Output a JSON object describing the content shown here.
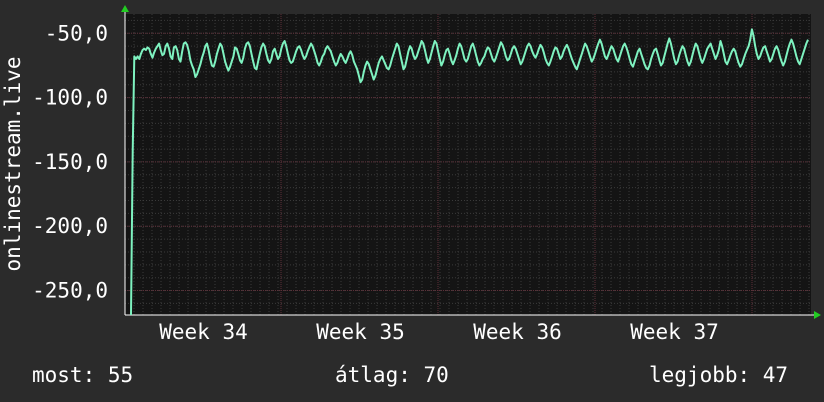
{
  "colors": {
    "background": "#2b2b2b",
    "plot_area": "#141414",
    "grid_minor": "#3a3a3a",
    "grid_major": "#5e2e38",
    "axis": "#ffffff",
    "arrow": "#22cc22",
    "series": "#7ef2c0",
    "text": "#ffffff"
  },
  "stats": {
    "current": "most: 55",
    "average": "átlag: 70",
    "best": "legjobb: 47"
  },
  "chart_data": {
    "type": "line",
    "title": "",
    "xlabel": "",
    "ylabel": "onlinestream.live",
    "x_axis": "time",
    "ylim": [
      -269,
      -35
    ],
    "yticks": [
      -50,
      -100,
      -150,
      -200,
      -250
    ],
    "ytick_labels": [
      "-50,0",
      "-100,0",
      "-150,0",
      "-200,0",
      "-250,0"
    ],
    "xticks": [
      "Week 34",
      "Week 35",
      "Week 36",
      "Week 37"
    ],
    "grid": true,
    "series": [
      {
        "values": [
          -269,
          -142,
          -68,
          -70,
          -68,
          -70,
          -66,
          -63,
          -62,
          -63,
          -61,
          -62,
          -66,
          -69,
          -65,
          -62,
          -60,
          -58,
          -63,
          -67,
          -66,
          -60,
          -58,
          -62,
          -68,
          -70,
          -61,
          -60,
          -63,
          -70,
          -72,
          -64,
          -58,
          -57,
          -59,
          -64,
          -71,
          -75,
          -78,
          -84,
          -82,
          -78,
          -74,
          -69,
          -65,
          -60,
          -58,
          -63,
          -70,
          -75,
          -76,
          -72,
          -66,
          -62,
          -58,
          -60,
          -66,
          -72,
          -76,
          -79,
          -76,
          -72,
          -68,
          -61,
          -62,
          -66,
          -71,
          -73,
          -69,
          -62,
          -58,
          -57,
          -60,
          -66,
          -72,
          -77,
          -78,
          -72,
          -66,
          -61,
          -58,
          -60,
          -66,
          -71,
          -73,
          -70,
          -64,
          -62,
          -66,
          -70,
          -68,
          -62,
          -58,
          -56,
          -60,
          -66,
          -71,
          -73,
          -72,
          -68,
          -64,
          -61,
          -60,
          -63,
          -67,
          -70,
          -68,
          -64,
          -61,
          -58,
          -60,
          -64,
          -68,
          -73,
          -75,
          -72,
          -68,
          -66,
          -62,
          -60,
          -62,
          -64,
          -68,
          -72,
          -75,
          -73,
          -69,
          -66,
          -68,
          -71,
          -73,
          -70,
          -66,
          -64,
          -67,
          -72,
          -75,
          -78,
          -83,
          -88,
          -86,
          -80,
          -75,
          -72,
          -74,
          -78,
          -82,
          -86,
          -83,
          -78,
          -73,
          -70,
          -68,
          -71,
          -74,
          -77,
          -78,
          -75,
          -70,
          -66,
          -62,
          -58,
          -60,
          -66,
          -72,
          -78,
          -76,
          -70,
          -64,
          -60,
          -62,
          -67,
          -70,
          -68,
          -64,
          -60,
          -56,
          -58,
          -63,
          -69,
          -73,
          -70,
          -65,
          -60,
          -56,
          -58,
          -64,
          -70,
          -75,
          -72,
          -67,
          -63,
          -62,
          -66,
          -71,
          -74,
          -71,
          -67,
          -62,
          -58,
          -60,
          -65,
          -70,
          -72,
          -70,
          -65,
          -60,
          -58,
          -62,
          -67,
          -72,
          -75,
          -73,
          -70,
          -68,
          -64,
          -61,
          -62,
          -66,
          -70,
          -72,
          -69,
          -65,
          -61,
          -57,
          -59,
          -63,
          -68,
          -71,
          -70,
          -66,
          -62,
          -60,
          -62,
          -66,
          -70,
          -74,
          -72,
          -68,
          -64,
          -60,
          -58,
          -60,
          -64,
          -67,
          -69,
          -66,
          -62,
          -59,
          -61,
          -65,
          -70,
          -73,
          -75,
          -72,
          -68,
          -64,
          -61,
          -62,
          -66,
          -70,
          -68,
          -64,
          -61,
          -59,
          -62,
          -66,
          -70,
          -73,
          -76,
          -78,
          -74,
          -70,
          -66,
          -62,
          -58,
          -60,
          -64,
          -68,
          -72,
          -70,
          -66,
          -62,
          -58,
          -55,
          -58,
          -63,
          -68,
          -70,
          -67,
          -63,
          -60,
          -62,
          -66,
          -70,
          -72,
          -68,
          -64,
          -60,
          -58,
          -61,
          -65,
          -70,
          -74,
          -76,
          -72,
          -68,
          -64,
          -62,
          -66,
          -70,
          -74,
          -77,
          -78,
          -75,
          -70,
          -66,
          -63,
          -62,
          -66,
          -71,
          -75,
          -73,
          -68,
          -63,
          -58,
          -54,
          -58,
          -64,
          -70,
          -74,
          -72,
          -67,
          -63,
          -60,
          -62,
          -67,
          -72,
          -75,
          -72,
          -67,
          -62,
          -58,
          -60,
          -65,
          -70,
          -73,
          -70,
          -66,
          -62,
          -60,
          -58,
          -62,
          -66,
          -70,
          -67,
          -63,
          -56,
          -60,
          -66,
          -72,
          -74,
          -71,
          -67,
          -64,
          -62,
          -64,
          -69,
          -73,
          -76,
          -74,
          -70,
          -66,
          -63,
          -60,
          -55,
          -47,
          -52,
          -60,
          -66,
          -70,
          -68,
          -64,
          -61,
          -60,
          -64,
          -68,
          -72,
          -70,
          -66,
          -62,
          -60,
          -63,
          -68,
          -72,
          -75,
          -72,
          -67,
          -62,
          -58,
          -55,
          -58,
          -63,
          -68,
          -72,
          -74,
          -70,
          -66,
          -62,
          -58,
          -55
        ]
      }
    ]
  }
}
